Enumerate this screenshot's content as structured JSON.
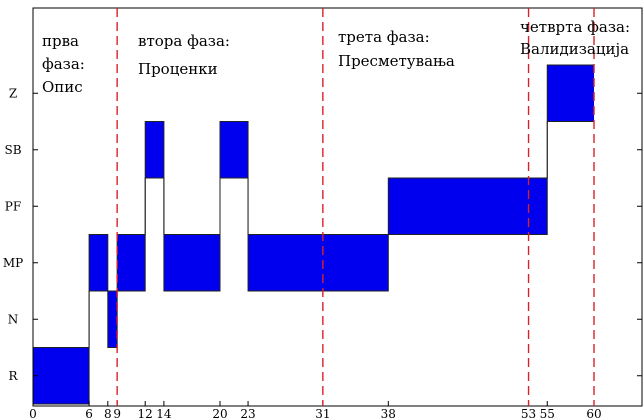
{
  "chart_data": {
    "type": "area",
    "title": "",
    "xlabel": "",
    "ylabel": "",
    "y_categories": [
      "R",
      "N",
      "MP",
      "PF",
      "SB",
      "Z"
    ],
    "x_ticks": [
      0,
      6,
      8,
      9,
      12,
      14,
      20,
      23,
      31,
      38,
      53,
      55,
      60
    ],
    "x_tick_labels": [
      "0",
      "6",
      "8",
      "9",
      "12",
      "14",
      "20",
      "23",
      "31",
      "38",
      "53",
      "55",
      "60"
    ],
    "xlim": [
      0,
      63
    ],
    "fill_color": "#0000ee",
    "divider_color": "#d8222a",
    "dividers_x": [
      9,
      31,
      53,
      60
    ],
    "blocks": [
      {
        "x0": 0,
        "x1": 6,
        "y0": "R",
        "y1": "R"
      },
      {
        "x0": 6,
        "x1": 8,
        "y0": "MP",
        "y1": "MP"
      },
      {
        "x0": 8,
        "x1": 9,
        "y0": "N",
        "y1": "N"
      },
      {
        "x0": 9,
        "x1": 12,
        "y0": "MP",
        "y1": "MP"
      },
      {
        "x0": 12,
        "x1": 14,
        "y0": "SB",
        "y1": "SB"
      },
      {
        "x0": 14,
        "x1": 20,
        "y0": "MP",
        "y1": "MP"
      },
      {
        "x0": 20,
        "x1": 23,
        "y0": "SB",
        "y1": "SB"
      },
      {
        "x0": 23,
        "x1": 38,
        "y0": "MP",
        "y1": "MP"
      },
      {
        "x0": 38,
        "x1": 55,
        "y0": "PF",
        "y1": "PF"
      },
      {
        "x0": 55,
        "x1": 60,
        "y0": "Z",
        "y1": "Z"
      }
    ],
    "phases": [
      {
        "lines": [
          "прва",
          "фаза:",
          "Опис"
        ]
      },
      {
        "lines": [
          "втора фаза:",
          "Проценки"
        ]
      },
      {
        "lines": [
          "трета фаза:",
          "Пресметувања"
        ]
      },
      {
        "lines": [
          "четврта фаза:",
          "Валидизација"
        ]
      }
    ],
    "grid": false,
    "legend": "none"
  }
}
